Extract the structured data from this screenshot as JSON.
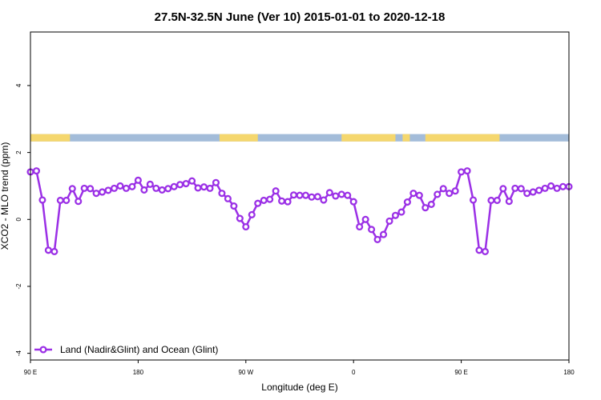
{
  "chart_data": {
    "type": "line",
    "title": "27.5N-32.5N June (Ver 10)   2015-01-01 to 2020-12-18",
    "xlabel": "Longitude (deg E)",
    "ylabel": "XCO2 - MLO trend (ppm)",
    "xlim": [
      0,
      450
    ],
    "ylim": [
      -4.2,
      5.6
    ],
    "x_ticks": [
      {
        "value": 0,
        "label": "90 E"
      },
      {
        "value": 90,
        "label": "180"
      },
      {
        "value": 180,
        "label": "90 W"
      },
      {
        "value": 270,
        "label": "0"
      },
      {
        "value": 360,
        "label": "90 E"
      },
      {
        "value": 450,
        "label": "180"
      }
    ],
    "y_ticks": [
      {
        "value": -4,
        "label": "-4"
      },
      {
        "value": -2,
        "label": "-2"
      },
      {
        "value": 0,
        "label": "0"
      },
      {
        "value": 2,
        "label": "2"
      },
      {
        "value": 4,
        "label": "4"
      }
    ],
    "land_ocean_band": {
      "y_range": [
        2.33,
        2.55
      ],
      "land_color": "#f5d76e",
      "ocean_color": "#a3bcd9",
      "land_segments": [
        [
          0,
          33
        ],
        [
          158,
          190
        ],
        [
          260,
          305
        ],
        [
          311,
          317
        ],
        [
          330,
          392
        ]
      ]
    },
    "legend": {
      "position": "bottom-left"
    },
    "series": [
      {
        "name": "Land (Nadir&Glint) and Ocean (Glint)",
        "color": "#9b30e6",
        "x": [
          0,
          5,
          10,
          15,
          20,
          25,
          30,
          35,
          40,
          45,
          50,
          55,
          60,
          65,
          70,
          75,
          80,
          85,
          90,
          95,
          100,
          105,
          110,
          115,
          120,
          125,
          130,
          135,
          140,
          145,
          150,
          155,
          160,
          165,
          170,
          175,
          180,
          185,
          190,
          195,
          200,
          205,
          210,
          215,
          220,
          225,
          230,
          235,
          240,
          245,
          250,
          255,
          260,
          265,
          270,
          275,
          280,
          285,
          290,
          295,
          300,
          305,
          310,
          315,
          320,
          325,
          330,
          335,
          340,
          345,
          350,
          355,
          360,
          365,
          370,
          375,
          380,
          385,
          390,
          395,
          400,
          405,
          410,
          415,
          420,
          425,
          430,
          435,
          440,
          445,
          450
        ],
        "y": [
          1.42,
          1.45,
          0.58,
          -0.92,
          -0.96,
          0.57,
          0.57,
          0.92,
          0.54,
          0.93,
          0.92,
          0.78,
          0.82,
          0.87,
          0.93,
          1.0,
          0.93,
          0.98,
          1.17,
          0.88,
          1.05,
          0.93,
          0.88,
          0.92,
          0.98,
          1.04,
          1.07,
          1.15,
          0.94,
          0.97,
          0.93,
          1.1,
          0.78,
          0.62,
          0.4,
          0.03,
          -0.22,
          0.14,
          0.48,
          0.57,
          0.6,
          0.85,
          0.55,
          0.53,
          0.73,
          0.72,
          0.72,
          0.67,
          0.68,
          0.58,
          0.8,
          0.7,
          0.75,
          0.72,
          0.53,
          -0.22,
          0.0,
          -0.3,
          -0.6,
          -0.45,
          -0.05,
          0.12,
          0.22,
          0.52,
          0.78,
          0.72,
          0.35,
          0.45,
          0.75,
          0.92,
          0.78,
          0.85,
          1.42,
          1.45,
          0.58,
          -0.92,
          -0.96,
          0.57,
          0.57,
          0.92,
          0.54,
          0.93,
          0.92,
          0.78,
          0.82,
          0.87,
          0.93,
          1.0,
          0.93,
          0.98,
          0.98
        ]
      }
    ]
  }
}
